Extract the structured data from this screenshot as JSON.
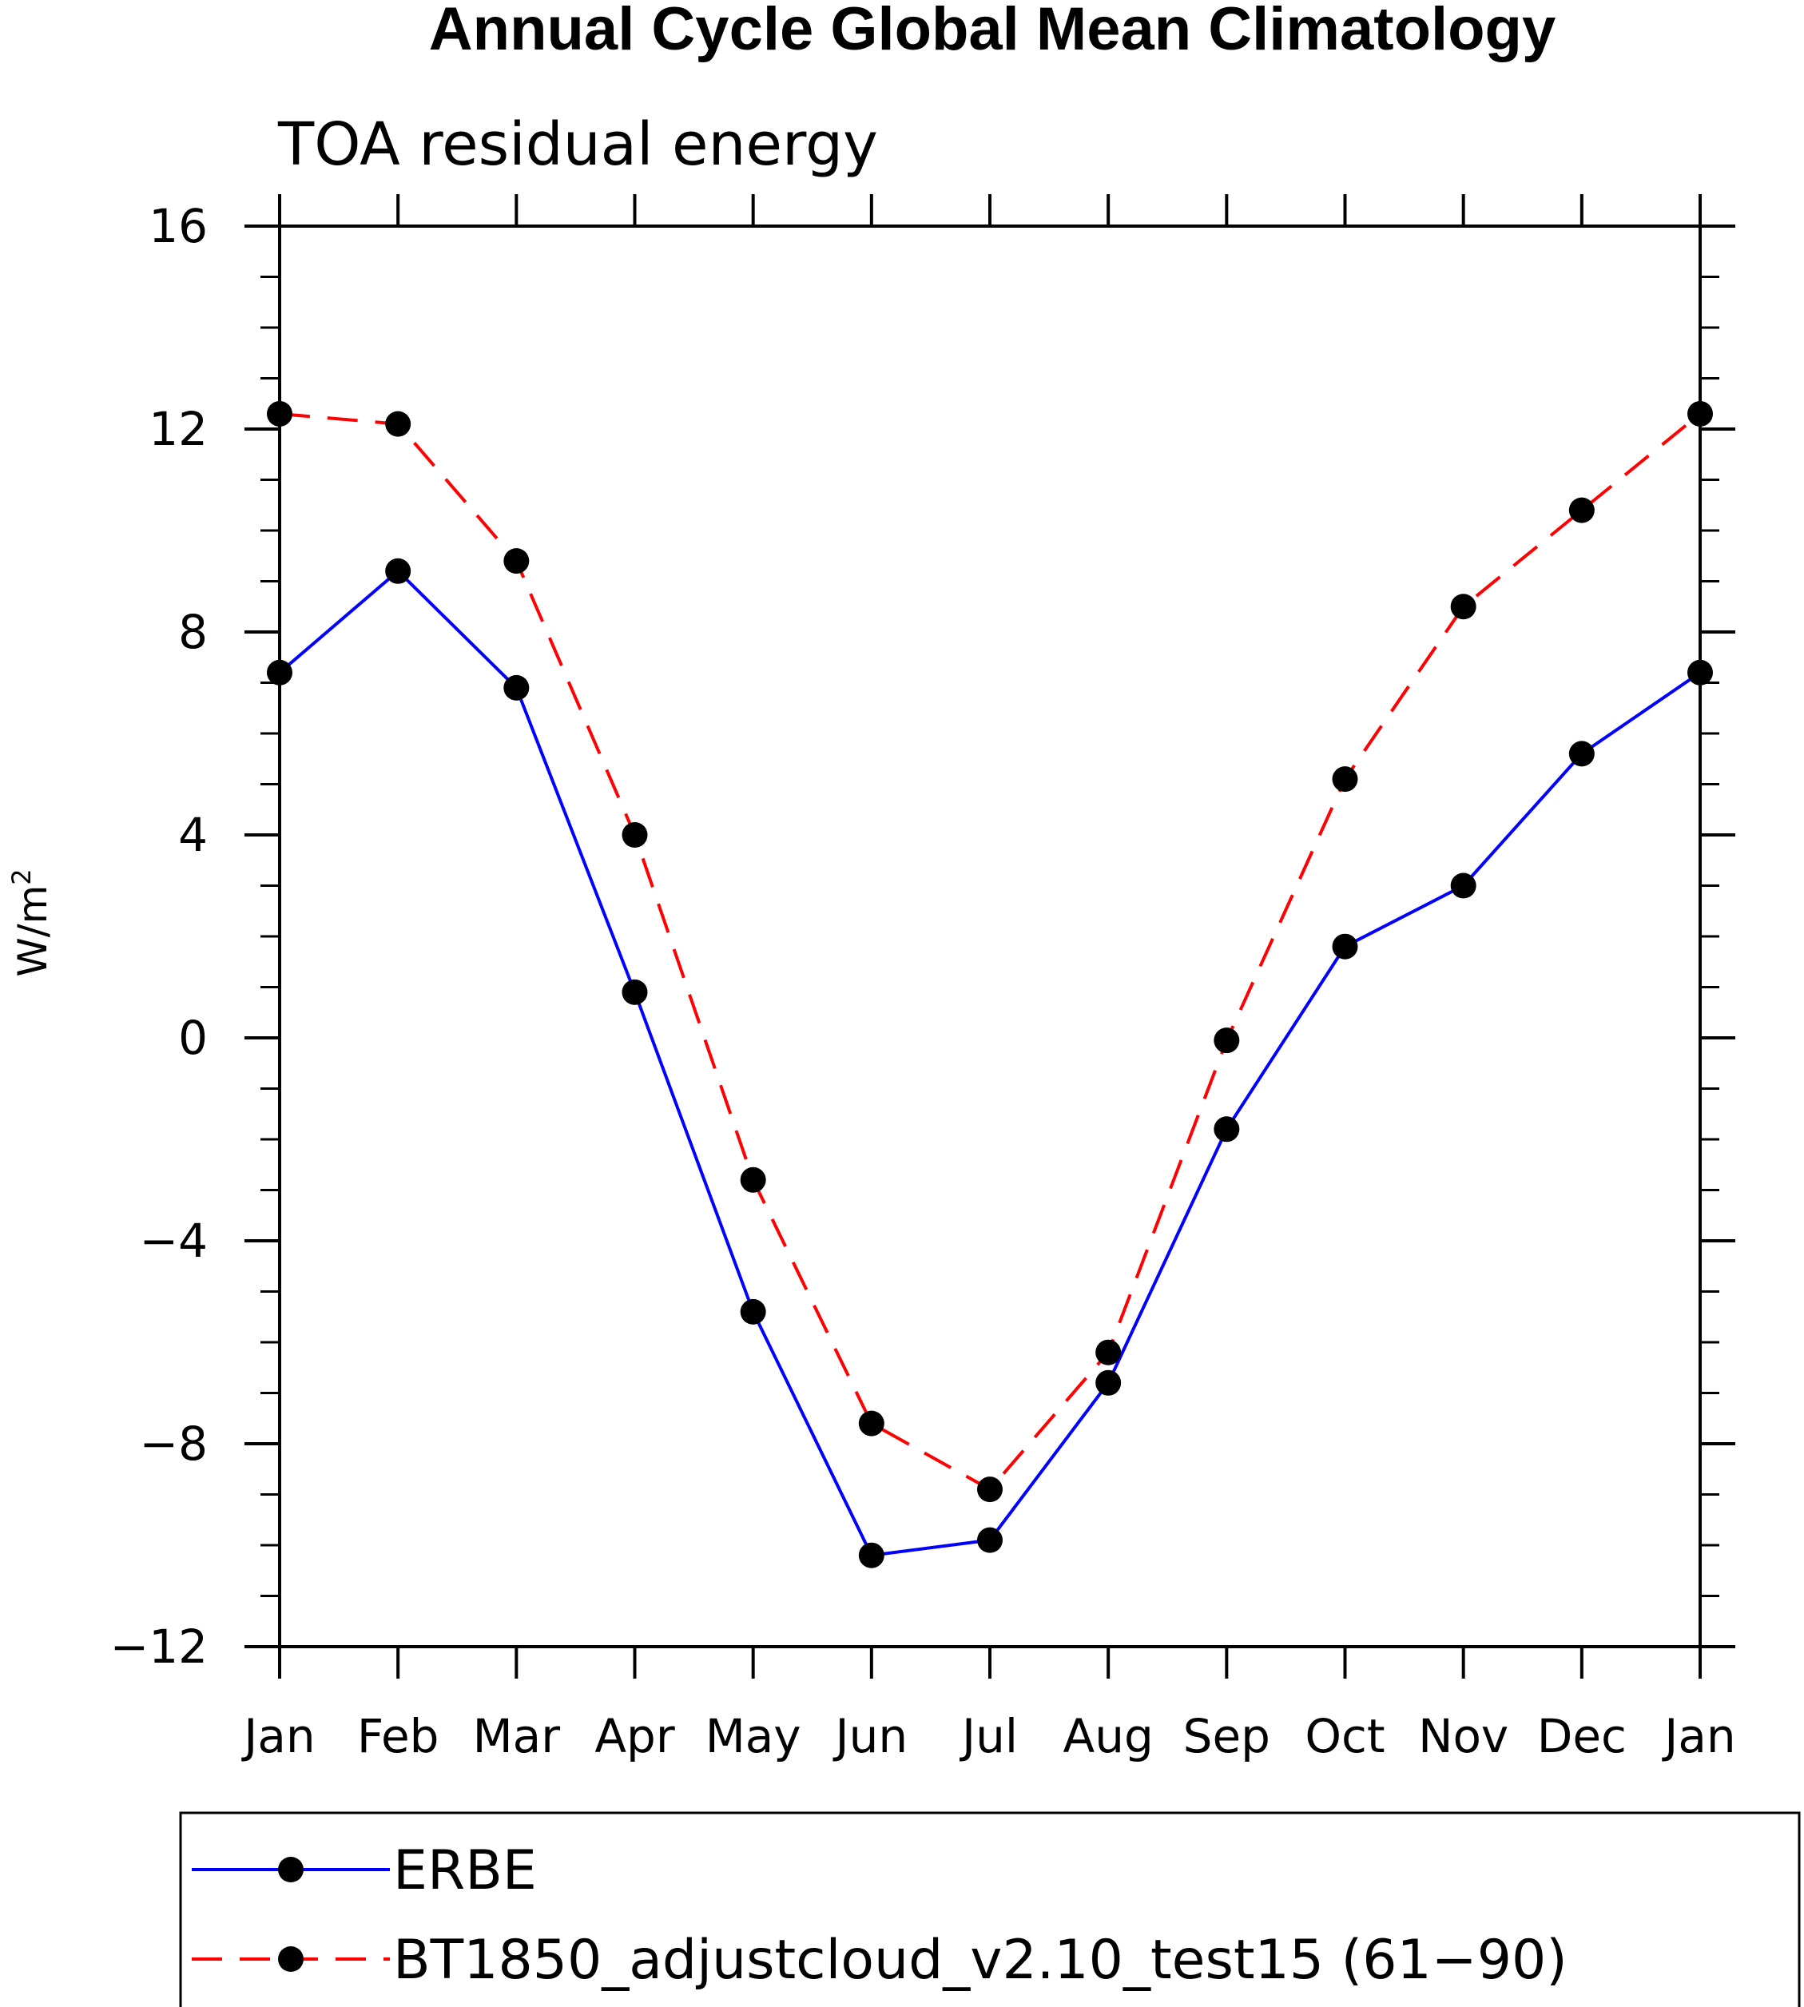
{
  "chart_data": {
    "type": "line",
    "title": "Annual Cycle Global Mean Climatology",
    "subtitle": "TOA residual energy",
    "ylabel_base": "W/m",
    "ylabel_sup": "2",
    "categories": [
      "Jan",
      "Feb",
      "Mar",
      "Apr",
      "May",
      "Jun",
      "Jul",
      "Aug",
      "Sep",
      "Oct",
      "Nov",
      "Dec",
      "Jan"
    ],
    "ylim": [
      -12,
      16
    ],
    "yticks": [
      -12,
      -8,
      -4,
      0,
      4,
      8,
      12,
      16
    ],
    "ytick_labels": [
      "−12",
      "−8",
      "−4",
      "0",
      "4",
      "8",
      "12",
      "16"
    ],
    "series": [
      {
        "name": "ERBE",
        "color": "#0000ff",
        "dash": "solid",
        "values": [
          7.2,
          9.2,
          6.9,
          0.9,
          -5.4,
          -10.2,
          -9.9,
          -6.8,
          -1.8,
          1.8,
          3.0,
          5.6,
          7.2
        ]
      },
      {
        "name": "BT1850_adjustcloud_v2.10_test15 (61−90)",
        "color": "#ff0000",
        "dash": "dashed",
        "values": [
          12.3,
          12.1,
          9.4,
          4.0,
          -2.8,
          -7.6,
          -8.9,
          -6.2,
          -0.05,
          5.1,
          8.5,
          10.4,
          12.3
        ]
      }
    ],
    "marker": "filled-circle",
    "legend_position": "bottom"
  }
}
